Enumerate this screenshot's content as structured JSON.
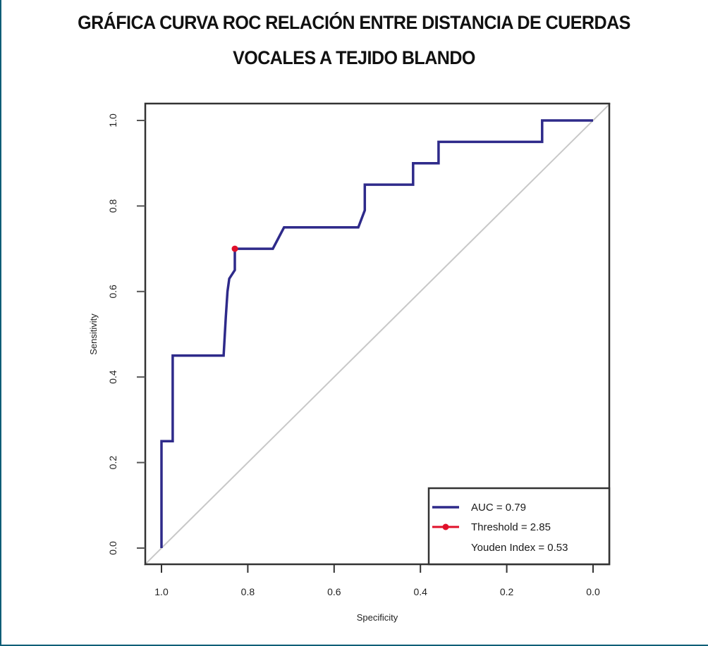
{
  "title_lines": [
    "GRÁFICA CURVA ROC RELACIÓN ENTRE DISTANCIA DE CUERDAS",
    "VOCALES  A TEJIDO BLANDO"
  ],
  "colors": {
    "frame": "#0f5e77",
    "curve": "#2e2a8a",
    "threshold_point": "#e0102a",
    "diagonal": "#c8c8c8",
    "axis": "#555555"
  },
  "chart_data": {
    "type": "line",
    "title": "GRÁFICA CURVA ROC RELACIÓN ENTRE DISTANCIA DE CUERDAS VOCALES  A TEJIDO BLANDO",
    "xlabel": "Specificity",
    "ylabel": "Sensitivity",
    "xlim": [
      1.0,
      0.0
    ],
    "ylim": [
      0.0,
      1.0
    ],
    "x_reversed": true,
    "xticks": [
      1.0,
      0.8,
      0.6,
      0.4,
      0.2,
      0.0
    ],
    "xtick_labels": [
      "1.0",
      "0.8",
      "0.6",
      "0.4",
      "0.2",
      "0.0"
    ],
    "yticks": [
      0.0,
      0.2,
      0.4,
      0.6,
      0.8,
      1.0
    ],
    "ytick_labels": [
      "0.0",
      "0.2",
      "0.4",
      "0.6",
      "0.8",
      "1.0"
    ],
    "grid": false,
    "series": [
      {
        "name": "AUC = 0.79",
        "specificity": [
          1.0,
          1.0,
          0.974,
          0.974,
          0.856,
          0.851,
          0.847,
          0.843,
          0.83,
          0.83,
          0.742,
          0.716,
          0.544,
          0.529,
          0.529,
          0.417,
          0.417,
          0.358,
          0.358,
          0.118,
          0.118,
          0.0
        ],
        "sensitivity": [
          0.0,
          0.25,
          0.25,
          0.45,
          0.45,
          0.54,
          0.6,
          0.63,
          0.65,
          0.7,
          0.7,
          0.75,
          0.75,
          0.79,
          0.85,
          0.85,
          0.9,
          0.9,
          0.95,
          0.95,
          1.0,
          1.0
        ]
      }
    ],
    "reference_line": {
      "from": [
        1.0,
        0.0
      ],
      "to": [
        0.0,
        1.0
      ]
    },
    "threshold_point": {
      "specificity": 0.83,
      "sensitivity": 0.7
    },
    "legend": {
      "position": "bottom-right",
      "entries": [
        "AUC = 0.79",
        "Threshold = 2.85",
        "Youden Index = 0.53"
      ]
    }
  }
}
